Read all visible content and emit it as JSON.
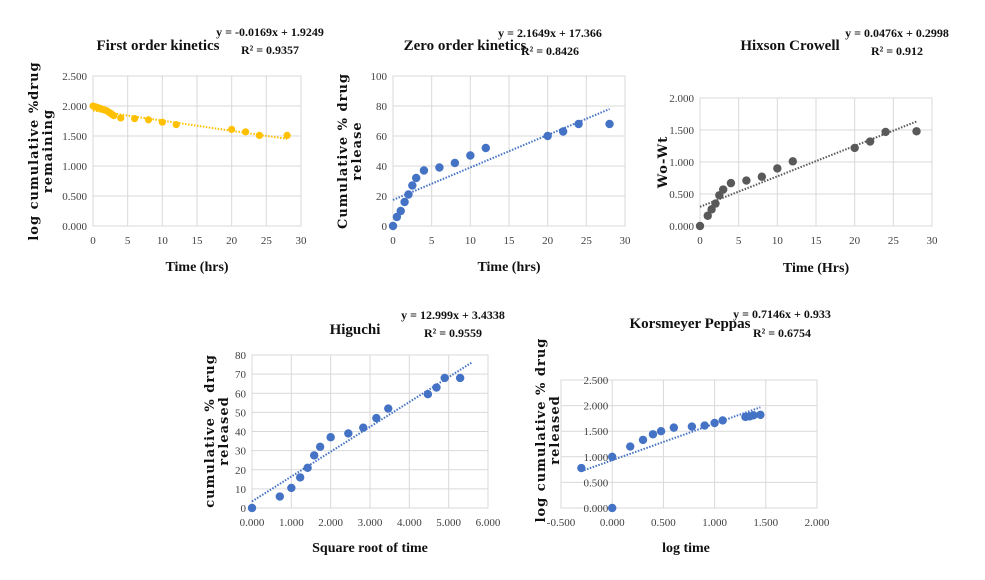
{
  "chart_data": [
    {
      "id": "first-order",
      "type": "scatter",
      "title": "First order kinetics",
      "equation": "y = -0.0169x + 1.9249",
      "r2": "R² = 0.9357",
      "xlabel": "Time (hrs)",
      "ylabel": [
        "log cumulative %drug",
        "remaining"
      ],
      "xlim": [
        0,
        30
      ],
      "ylim": [
        0,
        2.5
      ],
      "xticks": [
        0,
        5,
        10,
        15,
        20,
        25,
        30
      ],
      "xtick_labels": [
        "0",
        "5",
        "10",
        "15",
        "20",
        "25",
        "30"
      ],
      "yticks": [
        0,
        0.5,
        1.0,
        1.5,
        2.0,
        2.5
      ],
      "ytick_labels": [
        "0.000",
        "0.500",
        "1.000",
        "1.500",
        "2.000",
        "2.500"
      ],
      "color": "#FFC000",
      "marker_size": "small",
      "x": [
        0,
        0.25,
        0.5,
        0.75,
        1,
        1.25,
        1.5,
        1.75,
        2,
        2.25,
        2.5,
        2.75,
        3,
        4,
        6,
        8,
        10,
        12,
        20,
        22,
        24,
        28
      ],
      "y": [
        2.0,
        1.99,
        1.98,
        1.97,
        1.96,
        1.95,
        1.94,
        1.93,
        1.92,
        1.9,
        1.88,
        1.86,
        1.84,
        1.8,
        1.79,
        1.77,
        1.73,
        1.69,
        1.61,
        1.57,
        1.51,
        1.51
      ],
      "trendline": {
        "slope": -0.0169,
        "intercept": 1.9249,
        "x_range": [
          0,
          28
        ],
        "style": "dotted"
      },
      "grid": true
    },
    {
      "id": "zero-order",
      "type": "scatter",
      "title": "Zero order kinetics",
      "equation": "y = 2.1649x + 17.366",
      "r2": "R² = 0.8426",
      "xlabel": "Time (hrs)",
      "ylabel": [
        "Cumulative % drug",
        "release"
      ],
      "xlim": [
        0,
        30
      ],
      "ylim": [
        0,
        100
      ],
      "xticks": [
        0,
        5,
        10,
        15,
        20,
        25,
        30
      ],
      "xtick_labels": [
        "0",
        "5",
        "10",
        "15",
        "20",
        "25",
        "30"
      ],
      "yticks": [
        0,
        20,
        40,
        60,
        80,
        100
      ],
      "ytick_labels": [
        "0",
        "20",
        "40",
        "60",
        "80",
        "100"
      ],
      "color": "#4472C4",
      "marker_size": "normal",
      "x": [
        0,
        0.5,
        1,
        1.5,
        2,
        2.5,
        3,
        4,
        6,
        8,
        10,
        12,
        20,
        22,
        24,
        28
      ],
      "y": [
        0,
        6,
        10,
        16,
        21,
        27,
        32,
        37,
        39,
        42,
        47,
        52,
        60,
        63,
        68,
        68
      ],
      "trendline": {
        "slope": 2.1649,
        "intercept": 17.366,
        "x_range": [
          0,
          28
        ],
        "style": "dotted"
      },
      "grid": true
    },
    {
      "id": "hixson-crowell",
      "type": "scatter",
      "title": "Hixson Crowell",
      "equation": "y = 0.0476x + 0.2998",
      "r2": "R² = 0.912",
      "xlabel": "Time (Hrs)",
      "ylabel": [
        "Wo-Wt"
      ],
      "xlim": [
        0,
        30
      ],
      "ylim": [
        0,
        2.0
      ],
      "xticks": [
        0,
        5,
        10,
        15,
        20,
        25,
        30
      ],
      "xtick_labels": [
        "0",
        "5",
        "10",
        "15",
        "20",
        "25",
        "30"
      ],
      "yticks": [
        0,
        0.5,
        1.0,
        1.5,
        2.0
      ],
      "ytick_labels": [
        "0.000",
        "0.500",
        "1.000",
        "1.500",
        "2.000"
      ],
      "color": "#595959",
      "marker_size": "normal",
      "x": [
        0,
        1,
        1.5,
        2,
        2.5,
        3,
        4,
        6,
        8,
        10,
        12,
        20,
        22,
        24,
        28
      ],
      "y": [
        0,
        0.16,
        0.26,
        0.35,
        0.48,
        0.57,
        0.67,
        0.71,
        0.77,
        0.9,
        1.01,
        1.22,
        1.32,
        1.47,
        1.48
      ],
      "trendline": {
        "slope": 0.0476,
        "intercept": 0.2998,
        "x_range": [
          0,
          28
        ],
        "style": "dotted"
      },
      "grid": true
    },
    {
      "id": "higuchi",
      "type": "scatter",
      "title": "Higuchi",
      "equation": "y = 12.999x + 3.4338",
      "r2": "R² = 0.9559",
      "xlabel": "Square root of time",
      "ylabel": [
        "cumulative % drug",
        "released"
      ],
      "xlim": [
        0,
        6
      ],
      "ylim": [
        0,
        80
      ],
      "xticks": [
        0,
        1,
        2,
        3,
        4,
        5,
        6
      ],
      "xtick_labels": [
        "0.000",
        "1.000",
        "2.000",
        "3.000",
        "4.000",
        "5.000",
        "6.000"
      ],
      "yticks": [
        0,
        10,
        20,
        30,
        40,
        50,
        60,
        70,
        80
      ],
      "ytick_labels": [
        "0",
        "10",
        "20",
        "30",
        "40",
        "50",
        "60",
        "70",
        "80"
      ],
      "color": "#4472C4",
      "marker_size": "normal",
      "x": [
        0,
        0.707,
        1.0,
        1.225,
        1.414,
        1.581,
        1.732,
        2.0,
        2.449,
        2.828,
        3.162,
        3.464,
        4.472,
        4.69,
        4.899,
        5.292
      ],
      "y": [
        0,
        6,
        10.5,
        16,
        21,
        27.5,
        32,
        37,
        39,
        42,
        47,
        52,
        59.5,
        63,
        68,
        68
      ],
      "trendline": {
        "slope": 12.999,
        "intercept": 3.4338,
        "x_range": [
          0,
          5.6
        ],
        "style": "dotted"
      },
      "grid": true
    },
    {
      "id": "korsmeyer-peppas",
      "type": "scatter",
      "title": "Korsmeyer Peppas",
      "equation": "y = 0.7146x + 0.933",
      "r2": "R² = 0.6754",
      "xlabel": "log time",
      "ylabel": [
        "log cumulative % drug",
        "released"
      ],
      "xlim": [
        -0.5,
        2.0
      ],
      "ylim": [
        0,
        2.5
      ],
      "xticks": [
        -0.5,
        0,
        0.5,
        1.0,
        1.5,
        2.0
      ],
      "xtick_labels": [
        "-0.500",
        "0.000",
        "0.500",
        "1.000",
        "1.500",
        "2.000"
      ],
      "yticks": [
        0,
        0.5,
        1.0,
        1.5,
        2.0,
        2.5
      ],
      "ytick_labels": [
        "0.000",
        "0.500",
        "1.000",
        "1.500",
        "2.000",
        "2.500"
      ],
      "color": "#4472C4",
      "marker_size": "normal",
      "x": [
        -0.301,
        0,
        0,
        0.176,
        0.301,
        0.398,
        0.477,
        0.602,
        0.778,
        0.903,
        1.0,
        1.079,
        1.301,
        1.342,
        1.38,
        1.447
      ],
      "y": [
        0.78,
        1.0,
        0.0,
        1.2,
        1.33,
        1.44,
        1.5,
        1.57,
        1.59,
        1.61,
        1.66,
        1.71,
        1.78,
        1.79,
        1.81,
        1.82
      ],
      "trendline": {
        "slope": 0.7146,
        "intercept": 0.933,
        "x_range": [
          -0.301,
          1.447
        ],
        "style": "dotted"
      },
      "grid": true
    }
  ]
}
